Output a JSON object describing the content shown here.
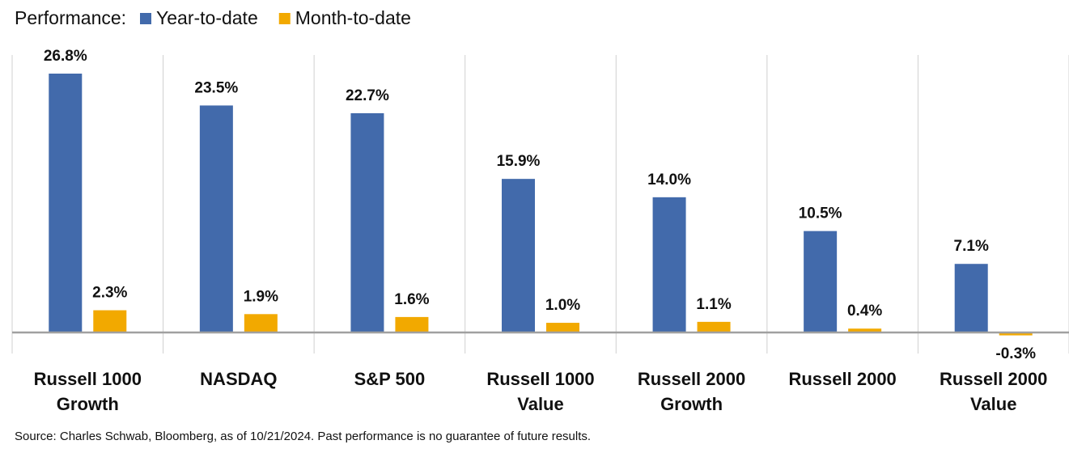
{
  "chart_data": {
    "type": "bar",
    "legend_title": "Performance:",
    "categories": [
      "Russell 1000 Growth",
      "NASDAQ",
      "S&P 500",
      "Russell 1000 Value",
      "Russell 2000 Growth",
      "Russell 2000",
      "Russell 2000 Value"
    ],
    "series": [
      {
        "name": "Year-to-date",
        "color": "#426aab",
        "values": [
          26.8,
          23.5,
          22.7,
          15.9,
          14.0,
          10.5,
          7.1
        ],
        "value_labels": [
          "26.8%",
          "23.5%",
          "22.7%",
          "15.9%",
          "14.0%",
          "10.5%",
          "7.1%"
        ]
      },
      {
        "name": "Month-to-date",
        "color": "#f2a900",
        "values": [
          2.3,
          1.9,
          1.6,
          1.0,
          1.1,
          0.4,
          -0.3
        ],
        "value_labels": [
          "2.3%",
          "1.9%",
          "1.6%",
          "1.0%",
          "1.1%",
          "0.4%",
          "-0.3%"
        ]
      }
    ],
    "source": "Source: Charles Schwab, Bloomberg, as of 10/21/2024.  Past performance is no guarantee of future results."
  }
}
